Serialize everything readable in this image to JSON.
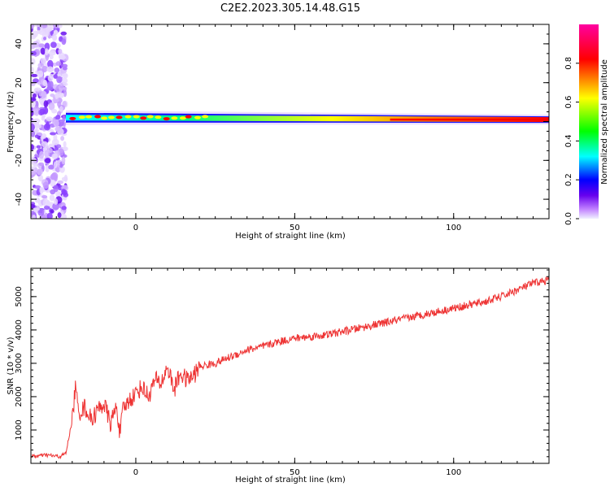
{
  "figure": {
    "title": "C2E2.2023.305.14.48.G15"
  },
  "chart_data": [
    {
      "type": "heatmap",
      "xlabel": "Height of straight line (km)",
      "ylabel": "Frequency (Hz)",
      "xlim": [
        -33,
        130
      ],
      "ylim": [
        -50,
        50
      ],
      "xticks": [
        0,
        50,
        100
      ],
      "yticks": [
        -40,
        -20,
        0,
        20,
        40
      ],
      "grid": false,
      "colorbar": {
        "label": "Normalized spectral amplitude",
        "range": [
          0,
          1
        ],
        "ticks": [
          0.0,
          0.2,
          0.4,
          0.6,
          0.8
        ],
        "colormap": [
          "#f0f0ff",
          "#c080ff",
          "#6600ee",
          "#0000ff",
          "#00ffff",
          "#00ff00",
          "#ffff00",
          "#ff8000",
          "#ff0000",
          "#ff00a0"
        ]
      },
      "features": [
        {
          "label": "broadband noise",
          "x_range": [
            -33,
            -22
          ],
          "freq_range": [
            -50,
            50
          ],
          "amplitude": 0.15
        },
        {
          "label": "signal band",
          "x_range": [
            -22,
            130
          ],
          "center_freq_hz": [
            2,
            1
          ],
          "amplitude": 0.9
        }
      ]
    },
    {
      "type": "line",
      "xlabel": "Height of straight line (km)",
      "ylabel": "SNR (10 * v/v)",
      "xlim": [
        -33,
        130
      ],
      "ylim": [
        0,
        5850
      ],
      "xticks": [
        0,
        50,
        100
      ],
      "yticks": [
        1000,
        2000,
        3000,
        4000,
        5000
      ],
      "grid": false,
      "series": [
        {
          "color": "#ee3333",
          "x": [
            -33,
            -28,
            -24,
            -22,
            -20,
            -19,
            -18,
            -16,
            -14,
            -12,
            -10,
            -8,
            -6,
            -5,
            -4,
            -2,
            0,
            2,
            4,
            6,
            8,
            10,
            12,
            14,
            16,
            18,
            20,
            25,
            30,
            35,
            40,
            45,
            50,
            55,
            60,
            65,
            70,
            75,
            80,
            85,
            90,
            95,
            100,
            105,
            110,
            115,
            120,
            125,
            130
          ],
          "y": [
            200,
            250,
            200,
            300,
            1300,
            2300,
            1500,
            1700,
            1300,
            1600,
            1800,
            1200,
            1700,
            900,
            1600,
            1900,
            2100,
            2300,
            2000,
            2500,
            2400,
            2900,
            2200,
            2700,
            2500,
            2600,
            2900,
            3000,
            3200,
            3400,
            3500,
            3650,
            3750,
            3800,
            3850,
            3950,
            4050,
            4150,
            4250,
            4350,
            4450,
            4550,
            4650,
            4750,
            4850,
            5000,
            5200,
            5400,
            5500
          ]
        }
      ]
    }
  ]
}
